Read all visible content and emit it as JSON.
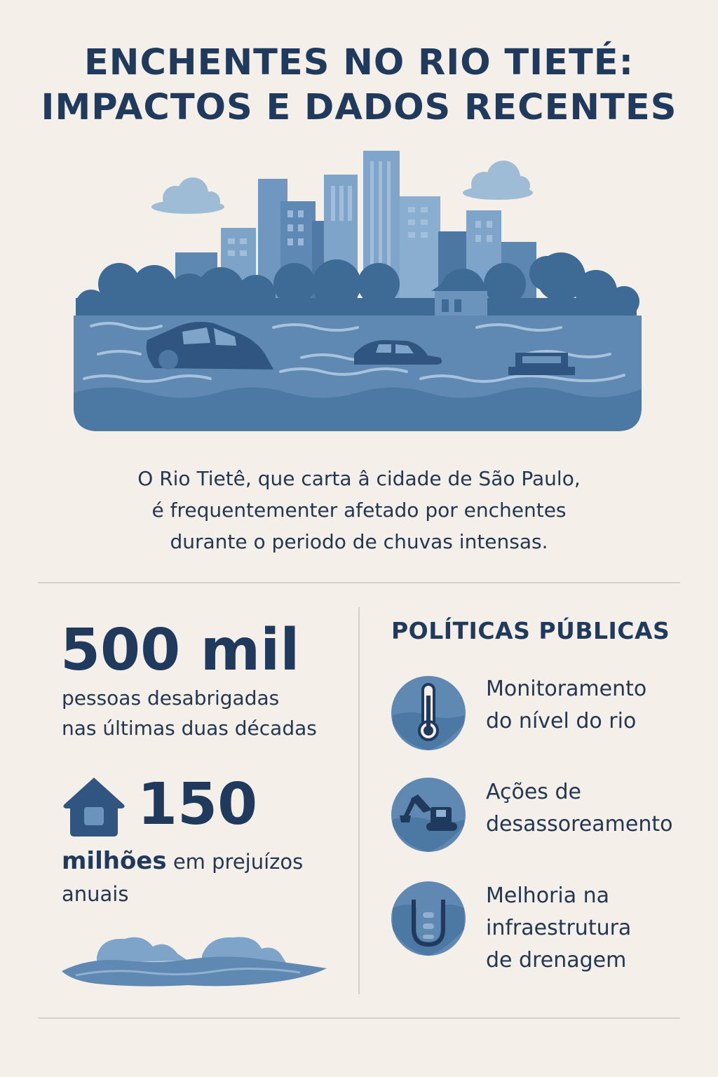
{
  "title": {
    "line1": "ENCHENTES NO RIO TIETÉ:",
    "line2": "IMPACTOS E DADOS RECENTES"
  },
  "intro": {
    "line1": "O Rio Tietê, que carta â cidade de São Paulo,",
    "line2": "é frequentementer afetado por enchentes",
    "line3": "durante o periodo de chuvas intensas."
  },
  "stats": {
    "displaced": {
      "value": "500 mil",
      "line1": "pessoas desabrigadas",
      "line2": "nas últimas duas décadas"
    },
    "losses": {
      "value": "150",
      "bold": "milhões",
      "rest": " em prejuízos",
      "line2": "anuais"
    }
  },
  "policies": {
    "title": "POLÍTICAS PÚBLICAS",
    "items": [
      {
        "icon": "thermometer-icon",
        "line1": "Monitoramento",
        "line2": "do nível do rio"
      },
      {
        "icon": "excavator-icon",
        "line1": "Ações de",
        "line2": "desassoreamento"
      },
      {
        "icon": "drain-pipe-icon",
        "line1": "Melhoria na",
        "line2": "infraestrutura",
        "line3": "de drenagem"
      }
    ]
  },
  "colors": {
    "background": "#f4efe8",
    "navy": "#1f3a5c",
    "water": "#5f89b3",
    "water_dark": "#3f6b96",
    "sky_blue": "#8fb0cf"
  }
}
